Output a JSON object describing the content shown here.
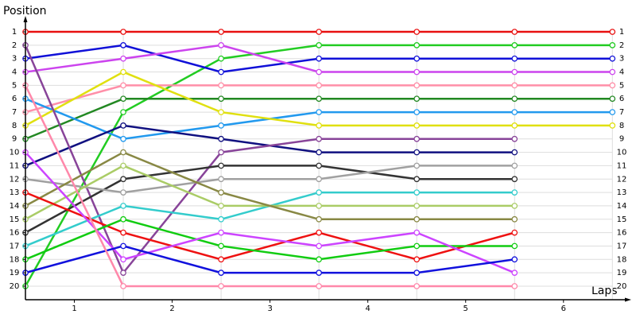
{
  "chart_data": {
    "type": "line",
    "y_label": "Position",
    "x_label": "Laps",
    "x": [
      0,
      1,
      2,
      3,
      4,
      5,
      6
    ],
    "xlim": [
      0,
      6.16
    ],
    "xticks": [
      {
        "value": 0.5,
        "label": "1"
      },
      {
        "value": 1.5,
        "label": "2"
      },
      {
        "value": 2.5,
        "label": "3"
      },
      {
        "value": 3.5,
        "label": "4"
      },
      {
        "value": 4.5,
        "label": "5"
      },
      {
        "value": 5.5,
        "label": "6"
      }
    ],
    "ylim": [
      21,
      0
    ],
    "yticks": [
      1,
      2,
      3,
      4,
      5,
      6,
      7,
      8,
      9,
      10,
      11,
      12,
      13,
      14,
      15,
      16,
      17,
      18,
      19,
      20
    ],
    "grid": true,
    "series": [
      {
        "color": "#e81010",
        "values": [
          1,
          1,
          1,
          1,
          1,
          1,
          1
        ]
      },
      {
        "color": "#22cc22",
        "values": [
          20,
          7,
          3,
          2,
          2,
          2,
          2
        ]
      },
      {
        "color": "#1010d8",
        "values": [
          3,
          2,
          4,
          3,
          3,
          3,
          3
        ]
      },
      {
        "color": "#cc44ee",
        "values": [
          4,
          3,
          2,
          4,
          4,
          4,
          4
        ]
      },
      {
        "color": "#ff8fa8",
        "values": [
          7,
          5,
          5,
          5,
          5,
          5,
          5
        ]
      },
      {
        "color": "#228822",
        "values": [
          9,
          6,
          6,
          6,
          6,
          6,
          6
        ]
      },
      {
        "color": "#2299ee",
        "values": [
          6,
          9,
          8,
          7,
          7,
          7,
          7
        ]
      },
      {
        "color": "#e0e010",
        "values": [
          8,
          4,
          7,
          8,
          8,
          8,
          8
        ]
      },
      {
        "color": "#101080",
        "values": [
          11,
          8,
          9,
          10,
          10,
          10,
          null
        ]
      },
      {
        "color": "#884499",
        "values": [
          2,
          19,
          10,
          9,
          9,
          9,
          null
        ]
      },
      {
        "color": "#333333",
        "values": [
          16,
          12,
          11,
          11,
          12,
          12,
          null
        ]
      },
      {
        "color": "#a0a0a0",
        "values": [
          12,
          13,
          12,
          12,
          11,
          11,
          null
        ]
      },
      {
        "color": "#33cccc",
        "values": [
          17,
          14,
          15,
          13,
          13,
          13,
          null
        ]
      },
      {
        "color": "#aacc66",
        "values": [
          15,
          11,
          14,
          14,
          14,
          14,
          null
        ]
      },
      {
        "color": "#888844",
        "values": [
          14,
          10,
          13,
          15,
          15,
          15,
          null
        ]
      },
      {
        "color": "#ee1111",
        "values": [
          13,
          16,
          18,
          16,
          18,
          16,
          null
        ]
      },
      {
        "color": "#11cc11",
        "values": [
          18,
          15,
          17,
          18,
          17,
          17,
          null
        ]
      },
      {
        "color": "#cc44ff",
        "values": [
          10,
          18,
          16,
          17,
          16,
          19,
          null
        ]
      },
      {
        "color": "#1111dd",
        "values": [
          19,
          17,
          19,
          19,
          19,
          18,
          null
        ]
      },
      {
        "color": "#ff88aa",
        "values": [
          5,
          20,
          20,
          20,
          20,
          20,
          null
        ]
      }
    ]
  }
}
